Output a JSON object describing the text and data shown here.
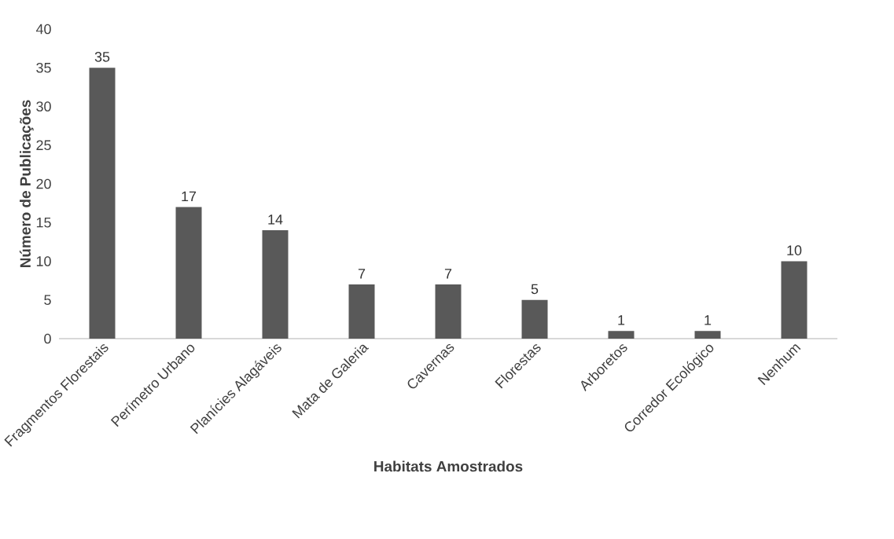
{
  "chart_data": {
    "type": "bar",
    "xlabel": "Habitats Amostrados",
    "ylabel": "Número de Publicações",
    "categories": [
      "Fragmentos Florestais",
      "Perímetro Urbano",
      "Planícies Alagáveis",
      "Mata de Galeria",
      "Cavernas",
      "Florestas",
      "Arboretos",
      "Corredor Ecológico",
      "Nenhum"
    ],
    "values": [
      35,
      17,
      14,
      7,
      7,
      5,
      1,
      1,
      10
    ],
    "color": "#595959",
    "ylim": [
      0,
      40
    ],
    "yticks": [
      0,
      5,
      10,
      15,
      20,
      25,
      30,
      35,
      40
    ],
    "data_labels": true
  }
}
